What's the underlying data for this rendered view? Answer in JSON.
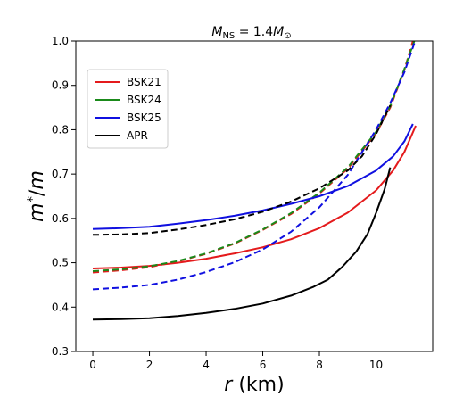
{
  "chart_data": {
    "type": "line",
    "title": "M_NS = 1.4 M_⊙",
    "title_parts": {
      "m": "M",
      "sub": "NS",
      "eq": " = 1.4",
      "m2": "M",
      "sun": "⊙"
    },
    "xlabel": "r (km)",
    "ylabel": "m*/m",
    "xlim": [
      -0.6,
      12.0
    ],
    "ylim": [
      0.3,
      1.0
    ],
    "xticks": [
      0,
      2,
      4,
      6,
      8,
      10
    ],
    "yticks": [
      0.3,
      0.4,
      0.5,
      0.6,
      0.7,
      0.8,
      0.9,
      1.0
    ],
    "grid": false,
    "legend_position": "upper-left",
    "legend": [
      {
        "name": "BSK21",
        "color": "#e41a1c"
      },
      {
        "name": "BSK24",
        "color": "#1a8a1a"
      },
      {
        "name": "BSK25",
        "color": "#1010e0"
      },
      {
        "name": "APR",
        "color": "#000000"
      }
    ],
    "series": [
      {
        "name": "BSK21",
        "style": "solid",
        "color": "#e41a1c",
        "x": [
          0,
          1,
          2,
          3,
          4,
          5,
          6,
          7,
          8,
          9,
          10,
          10.6,
          11.0,
          11.4
        ],
        "y": [
          0.487,
          0.489,
          0.493,
          0.5,
          0.509,
          0.521,
          0.535,
          0.553,
          0.578,
          0.613,
          0.663,
          0.708,
          0.75,
          0.809
        ]
      },
      {
        "name": "BSK21",
        "style": "dashed",
        "color": "#e41a1c",
        "x": [
          0,
          1,
          2,
          3,
          4,
          5,
          6,
          7,
          8,
          9,
          10,
          10.5,
          11.0,
          11.3
        ],
        "y": [
          0.478,
          0.483,
          0.49,
          0.503,
          0.52,
          0.543,
          0.574,
          0.61,
          0.656,
          0.712,
          0.792,
          0.85,
          0.935,
          1.0
        ]
      },
      {
        "name": "BSK24",
        "style": "dashed",
        "color": "#1a8a1a",
        "x": [
          0,
          1,
          2,
          3,
          4,
          5,
          6,
          7,
          8,
          9,
          10,
          10.5,
          11.0,
          11.35
        ],
        "y": [
          0.481,
          0.485,
          0.492,
          0.504,
          0.521,
          0.544,
          0.575,
          0.612,
          0.658,
          0.715,
          0.795,
          0.853,
          0.937,
          1.0
        ]
      },
      {
        "name": "BSK25",
        "style": "solid",
        "color": "#1010e0",
        "x": [
          0,
          1,
          2,
          3,
          4,
          5,
          6,
          7,
          8,
          9,
          10,
          10.6,
          11.0,
          11.3
        ],
        "y": [
          0.576,
          0.578,
          0.581,
          0.588,
          0.596,
          0.606,
          0.618,
          0.633,
          0.65,
          0.673,
          0.708,
          0.74,
          0.774,
          0.813
        ]
      },
      {
        "name": "BSK25",
        "style": "dashed",
        "color": "#1010e0",
        "x": [
          0,
          1,
          2,
          3,
          4,
          5,
          6,
          7,
          8,
          9,
          10,
          10.5,
          11.0,
          11.35
        ],
        "y": [
          0.44,
          0.444,
          0.45,
          0.462,
          0.479,
          0.501,
          0.53,
          0.57,
          0.625,
          0.698,
          0.8,
          0.86,
          0.93,
          0.995
        ]
      },
      {
        "name": "APR",
        "style": "solid",
        "color": "#000000",
        "x": [
          0,
          1,
          2,
          3,
          4,
          5,
          6,
          7,
          7.8,
          8.3,
          8.8,
          9.3,
          9.7,
          10.0,
          10.3,
          10.5
        ],
        "y": [
          0.372,
          0.373,
          0.375,
          0.38,
          0.387,
          0.396,
          0.408,
          0.426,
          0.446,
          0.462,
          0.49,
          0.525,
          0.565,
          0.612,
          0.665,
          0.715
        ]
      },
      {
        "name": "APR",
        "style": "dashed",
        "color": "#000000",
        "x": [
          0,
          1,
          2,
          3,
          4,
          5,
          6,
          7,
          8,
          9,
          9.5,
          10.0,
          10.5
        ],
        "y": [
          0.563,
          0.564,
          0.567,
          0.575,
          0.585,
          0.598,
          0.615,
          0.638,
          0.668,
          0.708,
          0.74,
          0.79,
          0.855
        ]
      }
    ]
  }
}
